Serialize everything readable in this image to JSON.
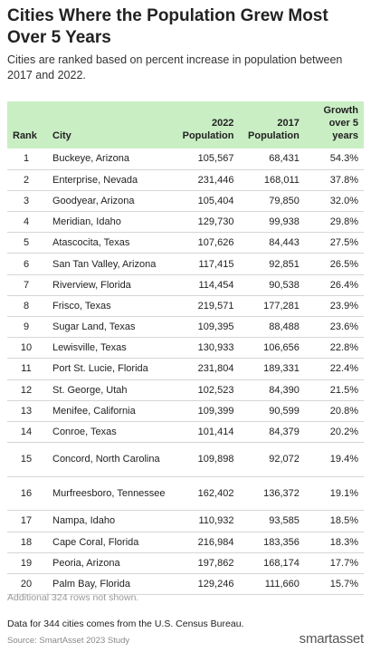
{
  "chart_data": {
    "type": "table",
    "title": "Cities Where the Population Grew Most Over 5 Years",
    "subtitle": "Cities are ranked based on percent increase in population between 2017 and 2022.",
    "columns": [
      "Rank",
      "City",
      "2022 Population",
      "2017 Population",
      "Growth over 5 years"
    ],
    "rows": [
      [
        "1",
        "Buckeye, Arizona",
        "105,567",
        "68,431",
        "54.3%"
      ],
      [
        "2",
        "Enterprise, Nevada",
        "231,446",
        "168,011",
        "37.8%"
      ],
      [
        "3",
        "Goodyear, Arizona",
        "105,404",
        "79,850",
        "32.0%"
      ],
      [
        "4",
        "Meridian, Idaho",
        "129,730",
        "99,938",
        "29.8%"
      ],
      [
        "5",
        "Atascocita, Texas",
        "107,626",
        "84,443",
        "27.5%"
      ],
      [
        "6",
        "San Tan Valley, Arizona",
        "117,415",
        "92,851",
        "26.5%"
      ],
      [
        "7",
        "Riverview, Florida",
        "114,454",
        "90,538",
        "26.4%"
      ],
      [
        "8",
        "Frisco, Texas",
        "219,571",
        "177,281",
        "23.9%"
      ],
      [
        "9",
        "Sugar Land, Texas",
        "109,395",
        "88,488",
        "23.6%"
      ],
      [
        "10",
        "Lewisville, Texas",
        "130,933",
        "106,656",
        "22.8%"
      ],
      [
        "11",
        "Port St. Lucie, Florida",
        "231,804",
        "189,331",
        "22.4%"
      ],
      [
        "12",
        "St. George, Utah",
        "102,523",
        "84,390",
        "21.5%"
      ],
      [
        "13",
        "Menifee, California",
        "109,399",
        "90,599",
        "20.8%"
      ],
      [
        "14",
        "Conroe, Texas",
        "101,414",
        "84,379",
        "20.2%"
      ],
      [
        "15",
        "Concord, North Carolina",
        "109,898",
        "92,072",
        "19.4%"
      ],
      [
        "16",
        "Murfreesboro, Tennessee",
        "162,402",
        "136,372",
        "19.1%"
      ],
      [
        "17",
        "Nampa, Idaho",
        "110,932",
        "93,585",
        "18.5%"
      ],
      [
        "18",
        "Cape Coral, Florida",
        "216,984",
        "183,356",
        "18.3%"
      ],
      [
        "19",
        "Peoria, Arizona",
        "197,862",
        "168,174",
        "17.7%"
      ],
      [
        "20",
        "Palm Bay, Florida",
        "129,246",
        "111,660",
        "15.7%"
      ]
    ],
    "additional_rows_note": "Additional 324 rows not shown.",
    "note": "Data for 344 cities comes from the U.S. Census Bureau.",
    "source": "Source: SmartAsset 2023 Study",
    "header_color": "#c9eec4"
  },
  "brand": {
    "logo_text": "smartasset"
  }
}
